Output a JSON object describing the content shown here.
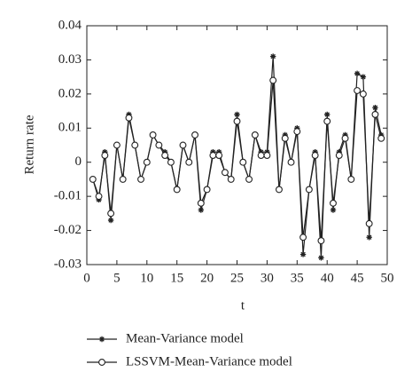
{
  "chart_data": {
    "type": "line",
    "xlabel": "t",
    "ylabel": "Return rate",
    "x": [
      1,
      2,
      3,
      4,
      5,
      6,
      7,
      8,
      9,
      10,
      11,
      12,
      13,
      14,
      15,
      16,
      17,
      18,
      19,
      20,
      21,
      22,
      23,
      24,
      25,
      26,
      27,
      28,
      29,
      30,
      31,
      32,
      33,
      34,
      35,
      36,
      37,
      38,
      39,
      40,
      41,
      42,
      43,
      44,
      45,
      46,
      47,
      48,
      49
    ],
    "series": [
      {
        "name": "Mean-Variance model",
        "color": "#222222",
        "marker": "star",
        "values": [
          -0.005,
          -0.011,
          0.003,
          -0.017,
          0.005,
          -0.005,
          0.014,
          0.005,
          -0.005,
          0,
          0.008,
          0.005,
          0.003,
          0,
          -0.008,
          0.005,
          0,
          0.008,
          -0.014,
          -0.008,
          0.003,
          0.003,
          -0.003,
          -0.005,
          0.014,
          0,
          -0.005,
          0.008,
          0.003,
          0.003,
          0.031,
          -0.008,
          0.008,
          0,
          0.01,
          -0.027,
          -0.008,
          0.003,
          -0.028,
          0.014,
          -0.014,
          0.003,
          0.008,
          -0.005,
          0.026,
          0.025,
          -0.022,
          0.016,
          0.008
        ]
      },
      {
        "name": "LSSVM-Mean-Variance model",
        "color": "#222222",
        "marker": "circle",
        "values": [
          -0.005,
          -0.01,
          0.002,
          -0.015,
          0.005,
          -0.005,
          0.013,
          0.005,
          -0.005,
          0,
          0.008,
          0.005,
          0.002,
          0,
          -0.008,
          0.005,
          0,
          0.008,
          -0.012,
          -0.008,
          0.002,
          0.002,
          -0.003,
          -0.005,
          0.012,
          0,
          -0.005,
          0.008,
          0.002,
          0.002,
          0.024,
          -0.008,
          0.007,
          0,
          0.009,
          -0.022,
          -0.008,
          0.002,
          -0.023,
          0.012,
          -0.012,
          0.002,
          0.007,
          -0.005,
          0.021,
          0.02,
          -0.018,
          0.014,
          0.007
        ]
      }
    ],
    "xlim": [
      0,
      50
    ],
    "xticks": [
      0,
      5,
      10,
      15,
      20,
      25,
      30,
      35,
      40,
      45,
      50
    ],
    "ylim": [
      -0.03,
      0.04
    ],
    "yticks": [
      -0.03,
      -0.02,
      -0.01,
      0,
      0.01,
      0.02,
      0.03,
      0.04
    ],
    "grid": false,
    "legend": "bottom"
  }
}
